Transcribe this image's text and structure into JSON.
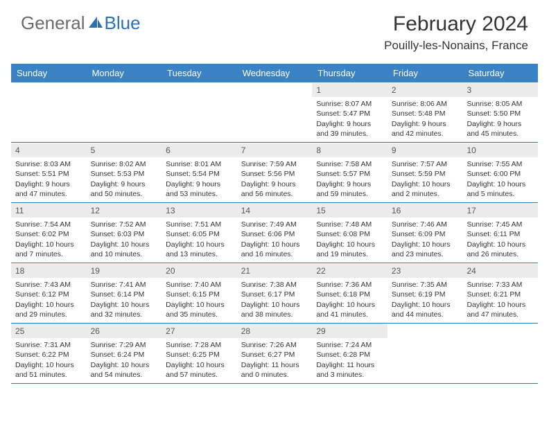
{
  "brand": {
    "name_gray": "General",
    "name_blue": "Blue"
  },
  "title": "February 2024",
  "location": "Pouilly-les-Nonains, France",
  "colors": {
    "header_bg": "#3b82c4",
    "header_text": "#ffffff",
    "daynum_bg": "#ebebeb",
    "border": "#2c6fb5",
    "text": "#333333",
    "logo_gray": "#6b6b6b",
    "logo_blue": "#2c6fb5"
  },
  "day_names": [
    "Sunday",
    "Monday",
    "Tuesday",
    "Wednesday",
    "Thursday",
    "Friday",
    "Saturday"
  ],
  "weeks": [
    [
      {
        "n": "",
        "sr": "",
        "ss": "",
        "dl": ""
      },
      {
        "n": "",
        "sr": "",
        "ss": "",
        "dl": ""
      },
      {
        "n": "",
        "sr": "",
        "ss": "",
        "dl": ""
      },
      {
        "n": "",
        "sr": "",
        "ss": "",
        "dl": ""
      },
      {
        "n": "1",
        "sr": "Sunrise: 8:07 AM",
        "ss": "Sunset: 5:47 PM",
        "dl": "Daylight: 9 hours and 39 minutes."
      },
      {
        "n": "2",
        "sr": "Sunrise: 8:06 AM",
        "ss": "Sunset: 5:48 PM",
        "dl": "Daylight: 9 hours and 42 minutes."
      },
      {
        "n": "3",
        "sr": "Sunrise: 8:05 AM",
        "ss": "Sunset: 5:50 PM",
        "dl": "Daylight: 9 hours and 45 minutes."
      }
    ],
    [
      {
        "n": "4",
        "sr": "Sunrise: 8:03 AM",
        "ss": "Sunset: 5:51 PM",
        "dl": "Daylight: 9 hours and 47 minutes."
      },
      {
        "n": "5",
        "sr": "Sunrise: 8:02 AM",
        "ss": "Sunset: 5:53 PM",
        "dl": "Daylight: 9 hours and 50 minutes."
      },
      {
        "n": "6",
        "sr": "Sunrise: 8:01 AM",
        "ss": "Sunset: 5:54 PM",
        "dl": "Daylight: 9 hours and 53 minutes."
      },
      {
        "n": "7",
        "sr": "Sunrise: 7:59 AM",
        "ss": "Sunset: 5:56 PM",
        "dl": "Daylight: 9 hours and 56 minutes."
      },
      {
        "n": "8",
        "sr": "Sunrise: 7:58 AM",
        "ss": "Sunset: 5:57 PM",
        "dl": "Daylight: 9 hours and 59 minutes."
      },
      {
        "n": "9",
        "sr": "Sunrise: 7:57 AM",
        "ss": "Sunset: 5:59 PM",
        "dl": "Daylight: 10 hours and 2 minutes."
      },
      {
        "n": "10",
        "sr": "Sunrise: 7:55 AM",
        "ss": "Sunset: 6:00 PM",
        "dl": "Daylight: 10 hours and 5 minutes."
      }
    ],
    [
      {
        "n": "11",
        "sr": "Sunrise: 7:54 AM",
        "ss": "Sunset: 6:02 PM",
        "dl": "Daylight: 10 hours and 7 minutes."
      },
      {
        "n": "12",
        "sr": "Sunrise: 7:52 AM",
        "ss": "Sunset: 6:03 PM",
        "dl": "Daylight: 10 hours and 10 minutes."
      },
      {
        "n": "13",
        "sr": "Sunrise: 7:51 AM",
        "ss": "Sunset: 6:05 PM",
        "dl": "Daylight: 10 hours and 13 minutes."
      },
      {
        "n": "14",
        "sr": "Sunrise: 7:49 AM",
        "ss": "Sunset: 6:06 PM",
        "dl": "Daylight: 10 hours and 16 minutes."
      },
      {
        "n": "15",
        "sr": "Sunrise: 7:48 AM",
        "ss": "Sunset: 6:08 PM",
        "dl": "Daylight: 10 hours and 19 minutes."
      },
      {
        "n": "16",
        "sr": "Sunrise: 7:46 AM",
        "ss": "Sunset: 6:09 PM",
        "dl": "Daylight: 10 hours and 23 minutes."
      },
      {
        "n": "17",
        "sr": "Sunrise: 7:45 AM",
        "ss": "Sunset: 6:11 PM",
        "dl": "Daylight: 10 hours and 26 minutes."
      }
    ],
    [
      {
        "n": "18",
        "sr": "Sunrise: 7:43 AM",
        "ss": "Sunset: 6:12 PM",
        "dl": "Daylight: 10 hours and 29 minutes."
      },
      {
        "n": "19",
        "sr": "Sunrise: 7:41 AM",
        "ss": "Sunset: 6:14 PM",
        "dl": "Daylight: 10 hours and 32 minutes."
      },
      {
        "n": "20",
        "sr": "Sunrise: 7:40 AM",
        "ss": "Sunset: 6:15 PM",
        "dl": "Daylight: 10 hours and 35 minutes."
      },
      {
        "n": "21",
        "sr": "Sunrise: 7:38 AM",
        "ss": "Sunset: 6:17 PM",
        "dl": "Daylight: 10 hours and 38 minutes."
      },
      {
        "n": "22",
        "sr": "Sunrise: 7:36 AM",
        "ss": "Sunset: 6:18 PM",
        "dl": "Daylight: 10 hours and 41 minutes."
      },
      {
        "n": "23",
        "sr": "Sunrise: 7:35 AM",
        "ss": "Sunset: 6:19 PM",
        "dl": "Daylight: 10 hours and 44 minutes."
      },
      {
        "n": "24",
        "sr": "Sunrise: 7:33 AM",
        "ss": "Sunset: 6:21 PM",
        "dl": "Daylight: 10 hours and 47 minutes."
      }
    ],
    [
      {
        "n": "25",
        "sr": "Sunrise: 7:31 AM",
        "ss": "Sunset: 6:22 PM",
        "dl": "Daylight: 10 hours and 51 minutes."
      },
      {
        "n": "26",
        "sr": "Sunrise: 7:29 AM",
        "ss": "Sunset: 6:24 PM",
        "dl": "Daylight: 10 hours and 54 minutes."
      },
      {
        "n": "27",
        "sr": "Sunrise: 7:28 AM",
        "ss": "Sunset: 6:25 PM",
        "dl": "Daylight: 10 hours and 57 minutes."
      },
      {
        "n": "28",
        "sr": "Sunrise: 7:26 AM",
        "ss": "Sunset: 6:27 PM",
        "dl": "Daylight: 11 hours and 0 minutes."
      },
      {
        "n": "29",
        "sr": "Sunrise: 7:24 AM",
        "ss": "Sunset: 6:28 PM",
        "dl": "Daylight: 11 hours and 3 minutes."
      },
      {
        "n": "",
        "sr": "",
        "ss": "",
        "dl": ""
      },
      {
        "n": "",
        "sr": "",
        "ss": "",
        "dl": ""
      }
    ]
  ]
}
